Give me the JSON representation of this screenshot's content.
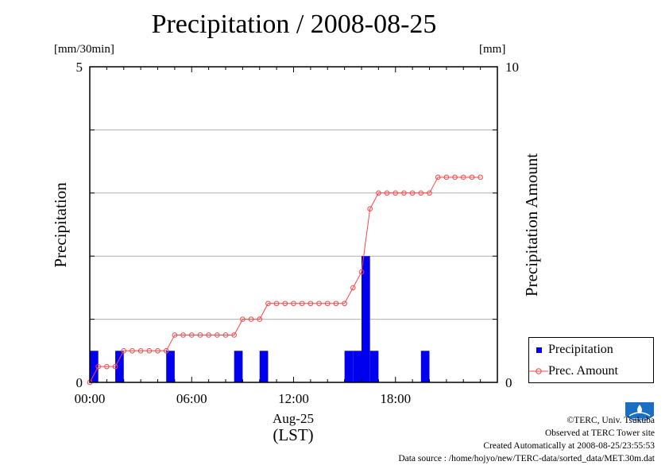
{
  "title": "Precipitation / 2008-08-25",
  "left_unit": "[mm/30min]",
  "right_unit": "[mm]",
  "left_axis_label": "Precipitation",
  "right_axis_label": "Precipitation Amount",
  "x_date_label": "Aug-25",
  "x_tz_label": "(LST)",
  "legend": {
    "bar_label": "Precipitation",
    "line_label": "Prec. Amount"
  },
  "credits": {
    "copyright": "©TERC, Univ. Tsukuba",
    "observed": "Observed at TERC Tower site",
    "created": "Created Automatically at 2008-08-25/23:55:53",
    "source": "Data source : /home/hojyo/new/TERC-data/sorted_data/MET.30m.dat"
  },
  "logo_text": "TERC",
  "colors": {
    "bar": "#0000ee",
    "line": "#ff4444",
    "grid": "#b0b0b0"
  },
  "chart_data": {
    "type": "bar",
    "x_unit": "hours (LST)",
    "xlim": [
      0,
      24
    ],
    "x_ticks": [
      0,
      6,
      12,
      18
    ],
    "x_tick_labels": [
      "00:00",
      "06:00",
      "12:00",
      "18:00"
    ],
    "grid": "horizontal",
    "legend_position": "lower-right, outside plot",
    "series": [
      {
        "name": "Precipitation",
        "type": "bar",
        "axis": "left",
        "ylim": [
          0,
          5
        ],
        "y_ticks": [
          0,
          5
        ],
        "bar_width_hours": 0.5,
        "x_start": [
          0.0,
          1.5,
          4.5,
          8.5,
          10.0,
          15.0,
          15.5,
          16.0,
          16.5,
          19.5
        ],
        "values": [
          0.5,
          0.5,
          0.5,
          0.5,
          0.5,
          0.5,
          0.5,
          2.0,
          0.5,
          0.5
        ]
      },
      {
        "name": "Prec. Amount",
        "type": "line",
        "axis": "right",
        "ylim": [
          0,
          10
        ],
        "y_ticks": [
          0,
          10
        ],
        "x": [
          0,
          0.5,
          1,
          1.5,
          2,
          2.5,
          3,
          3.5,
          4,
          4.5,
          5,
          5.5,
          6,
          6.5,
          7,
          7.5,
          8,
          8.5,
          9,
          9.5,
          10,
          10.5,
          11,
          11.5,
          12,
          12.5,
          13,
          13.5,
          14,
          14.5,
          15,
          15.5,
          16,
          16.5,
          17,
          17.5,
          18,
          18.5,
          19,
          19.5,
          20,
          20.5,
          21,
          21.5,
          22,
          22.5,
          23
        ],
        "values": [
          0,
          0.5,
          0.5,
          0.5,
          1,
          1,
          1,
          1,
          1,
          1,
          1.5,
          1.5,
          1.5,
          1.5,
          1.5,
          1.5,
          1.5,
          1.5,
          2,
          2,
          2,
          2.5,
          2.5,
          2.5,
          2.5,
          2.5,
          2.5,
          2.5,
          2.5,
          2.5,
          2.5,
          3,
          3.5,
          5.5,
          6,
          6,
          6,
          6,
          6,
          6,
          6,
          6.5,
          6.5,
          6.5,
          6.5,
          6.5,
          6.5
        ]
      }
    ]
  }
}
